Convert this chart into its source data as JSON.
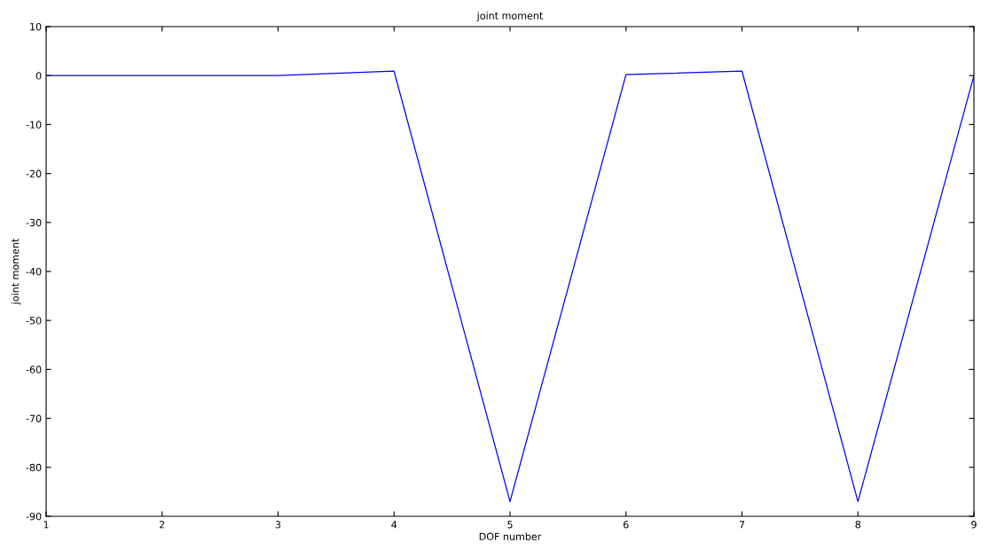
{
  "chart_data": {
    "type": "line",
    "title": "joint moment",
    "xlabel": "DOF number",
    "ylabel": "joint moment",
    "x": [
      1,
      2,
      3,
      4,
      5,
      6,
      7,
      8,
      9
    ],
    "series": [
      {
        "color": "#0000ff",
        "values": [
          0,
          0,
          0,
          0.9,
          -87,
          0.2,
          0.9,
          -87,
          0
        ]
      }
    ],
    "xlim": [
      1,
      9
    ],
    "xticks": [
      1,
      2,
      3,
      4,
      5,
      6,
      7,
      8,
      9
    ],
    "ylim": [
      -90,
      10
    ],
    "yticks": [
      -90,
      -80,
      -70,
      -60,
      -50,
      -40,
      -30,
      -20,
      -10,
      0,
      10
    ],
    "grid": false,
    "legend": false,
    "marker": "none",
    "line_style": "solid"
  }
}
